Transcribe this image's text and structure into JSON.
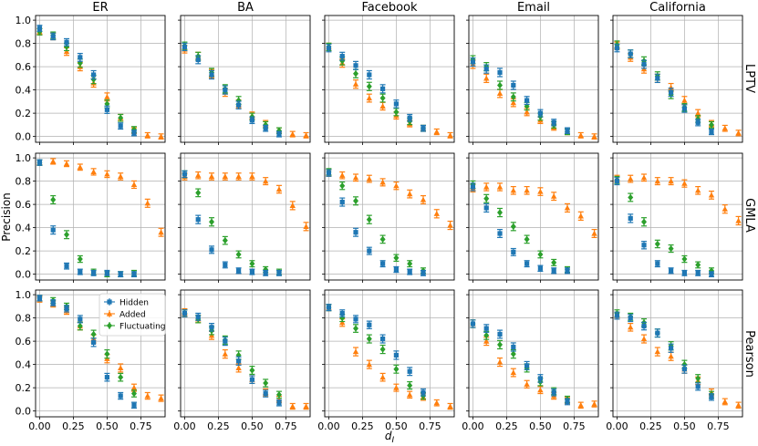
{
  "figure": {
    "columns": [
      "ER",
      "BA",
      "Facebook",
      "Email",
      "California"
    ],
    "rows": [
      "LPTV",
      "GMLA",
      "Pearson"
    ],
    "ylabel": "Precision",
    "xlabel": "d_J",
    "legend": {
      "hidden": "Hidden",
      "added": "Added",
      "fluctuating": "Fluctuating"
    }
  },
  "colors": {
    "hidden": "#1f77b4",
    "added": "#ff7f0e",
    "fluctuating": "#2ca02c",
    "grid": "#b0b0b0"
  },
  "chart_data": {
    "type": "scatter",
    "subtype": "errorbar-grid",
    "x_ticks": [
      "0.00",
      "0.25",
      "0.50",
      "0.75"
    ],
    "y_ticks": [
      "0.0",
      "0.2",
      "0.4",
      "0.6",
      "0.8",
      "1.0"
    ],
    "xlim": [
      -0.03,
      0.93
    ],
    "ylim": [
      -0.05,
      1.04
    ],
    "grid": true,
    "legend_location": "upper-right of Pearson/ER panel",
    "x_hidden": [
      0.0,
      0.1,
      0.2,
      0.3,
      0.4,
      0.5,
      0.6,
      0.7
    ],
    "x_added": [
      0.0,
      0.1,
      0.2,
      0.3,
      0.4,
      0.5,
      0.6,
      0.7,
      0.8,
      0.9
    ],
    "x_fluct": [
      0.0,
      0.1,
      0.2,
      0.3,
      0.4,
      0.5,
      0.6,
      0.7
    ],
    "panels": [
      {
        "row": "LPTV",
        "column": "ER",
        "hidden": [
          0.93,
          0.86,
          0.81,
          0.68,
          0.53,
          0.23,
          0.09,
          0.03
        ],
        "added": [
          0.9,
          0.86,
          0.73,
          0.6,
          0.46,
          0.34,
          0.16,
          0.05,
          0.01,
          0.0
        ],
        "fluctuating": [
          0.9,
          0.87,
          0.77,
          0.63,
          0.49,
          0.28,
          0.16,
          0.06
        ]
      },
      {
        "row": "LPTV",
        "column": "BA",
        "hidden": [
          0.77,
          0.66,
          0.53,
          0.4,
          0.27,
          0.14,
          0.07,
          0.02
        ],
        "added": [
          0.75,
          0.69,
          0.54,
          0.38,
          0.28,
          0.18,
          0.11,
          0.05,
          0.02,
          0.01
        ],
        "fluctuating": [
          0.78,
          0.69,
          0.55,
          0.41,
          0.31,
          0.17,
          0.1,
          0.05
        ]
      },
      {
        "row": "LPTV",
        "column": "Facebook",
        "hidden": [
          0.76,
          0.69,
          0.61,
          0.53,
          0.41,
          0.28,
          0.16,
          0.07
        ],
        "added": [
          0.77,
          0.63,
          0.45,
          0.33,
          0.26,
          0.18,
          0.11,
          0.07,
          0.04,
          0.01
        ],
        "fluctuating": [
          0.77,
          0.65,
          0.54,
          0.43,
          0.33,
          0.21,
          0.13,
          0.07
        ]
      },
      {
        "row": "LPTV",
        "column": "Email",
        "hidden": [
          0.64,
          0.58,
          0.55,
          0.44,
          0.31,
          0.2,
          0.12,
          0.05
        ],
        "added": [
          0.62,
          0.5,
          0.37,
          0.29,
          0.21,
          0.14,
          0.08,
          0.04,
          0.01,
          0.0
        ],
        "fluctuating": [
          0.66,
          0.6,
          0.44,
          0.34,
          0.26,
          0.17,
          0.1,
          0.04
        ]
      },
      {
        "row": "LPTV",
        "column": "California",
        "hidden": [
          0.76,
          0.71,
          0.62,
          0.5,
          0.38,
          0.24,
          0.12,
          0.04
        ],
        "added": [
          0.78,
          0.68,
          0.58,
          0.5,
          0.42,
          0.31,
          0.2,
          0.11,
          0.07,
          0.03
        ],
        "fluctuating": [
          0.79,
          0.71,
          0.65,
          0.52,
          0.36,
          0.25,
          0.15,
          0.1
        ]
      },
      {
        "row": "GMLA",
        "column": "ER",
        "hidden": [
          0.96,
          0.38,
          0.07,
          0.02,
          0.01,
          0.01,
          0.0,
          0.0
        ],
        "added": [
          0.96,
          0.97,
          0.95,
          0.92,
          0.88,
          0.86,
          0.84,
          0.77,
          0.61,
          0.36
        ],
        "fluctuating": [
          0.96,
          0.64,
          0.34,
          0.13,
          0.02,
          0.0,
          0.0,
          0.01
        ]
      },
      {
        "row": "GMLA",
        "column": "BA",
        "hidden": [
          0.86,
          0.47,
          0.21,
          0.08,
          0.03,
          0.02,
          0.01,
          0.01
        ],
        "added": [
          0.84,
          0.85,
          0.84,
          0.84,
          0.84,
          0.84,
          0.8,
          0.73,
          0.59,
          0.41
        ],
        "fluctuating": [
          0.86,
          0.7,
          0.45,
          0.29,
          0.17,
          0.09,
          0.04,
          0.02
        ]
      },
      {
        "row": "GMLA",
        "column": "Facebook",
        "hidden": [
          0.87,
          0.62,
          0.36,
          0.2,
          0.09,
          0.04,
          0.02,
          0.01
        ],
        "added": [
          0.87,
          0.85,
          0.83,
          0.82,
          0.79,
          0.76,
          0.69,
          0.64,
          0.52,
          0.42
        ],
        "fluctuating": [
          0.88,
          0.76,
          0.63,
          0.47,
          0.3,
          0.14,
          0.09,
          0.03
        ]
      },
      {
        "row": "GMLA",
        "column": "Email",
        "hidden": [
          0.75,
          0.57,
          0.35,
          0.19,
          0.09,
          0.05,
          0.03,
          0.03
        ],
        "added": [
          0.74,
          0.75,
          0.75,
          0.72,
          0.72,
          0.71,
          0.67,
          0.57,
          0.5,
          0.35
        ],
        "fluctuating": [
          0.77,
          0.65,
          0.53,
          0.41,
          0.3,
          0.17,
          0.1,
          0.04
        ]
      },
      {
        "row": "GMLA",
        "column": "California",
        "hidden": [
          0.8,
          0.48,
          0.25,
          0.09,
          0.03,
          0.01,
          0.01,
          0.0
        ],
        "added": [
          0.82,
          0.82,
          0.83,
          0.8,
          0.8,
          0.78,
          0.72,
          0.68,
          0.56,
          0.46
        ],
        "fluctuating": [
          0.81,
          0.66,
          0.45,
          0.26,
          0.22,
          0.13,
          0.08,
          0.03
        ]
      },
      {
        "row": "Pearson",
        "column": "ER",
        "hidden": [
          0.97,
          0.93,
          0.88,
          0.79,
          0.59,
          0.29,
          0.13,
          0.05
        ],
        "added": [
          0.96,
          0.92,
          0.86,
          0.73,
          0.62,
          0.45,
          0.37,
          0.2,
          0.13,
          0.11
        ],
        "fluctuating": [
          0.97,
          0.95,
          0.9,
          0.73,
          0.66,
          0.49,
          0.29,
          0.15
        ]
      },
      {
        "row": "Pearson",
        "column": "BA",
        "hidden": [
          0.84,
          0.81,
          0.72,
          0.6,
          0.43,
          0.27,
          0.15,
          0.07
        ],
        "added": [
          0.85,
          0.79,
          0.65,
          0.49,
          0.37,
          0.27,
          0.16,
          0.1,
          0.04,
          0.04
        ],
        "fluctuating": [
          0.84,
          0.79,
          0.69,
          0.61,
          0.48,
          0.35,
          0.24,
          0.14
        ]
      },
      {
        "row": "Pearson",
        "column": "Facebook",
        "hidden": [
          0.89,
          0.84,
          0.79,
          0.74,
          0.62,
          0.48,
          0.34,
          0.16
        ],
        "added": [
          0.89,
          0.76,
          0.51,
          0.4,
          0.29,
          0.2,
          0.14,
          0.12,
          0.07,
          0.04
        ],
        "fluctuating": [
          0.89,
          0.8,
          0.71,
          0.62,
          0.53,
          0.36,
          0.22,
          0.13
        ]
      },
      {
        "row": "Pearson",
        "column": "Email",
        "hidden": [
          0.75,
          0.71,
          0.66,
          0.55,
          0.39,
          0.28,
          0.16,
          0.08
        ],
        "added": [
          0.75,
          0.6,
          0.42,
          0.33,
          0.23,
          0.18,
          0.13,
          0.09,
          0.05,
          0.06
        ],
        "fluctuating": [
          0.75,
          0.65,
          0.57,
          0.49,
          0.37,
          0.25,
          0.17,
          0.1
        ]
      },
      {
        "row": "Pearson",
        "column": "California",
        "hidden": [
          0.82,
          0.8,
          0.73,
          0.67,
          0.54,
          0.36,
          0.21,
          0.12
        ],
        "added": [
          0.82,
          0.72,
          0.62,
          0.51,
          0.47,
          0.36,
          0.26,
          0.16,
          0.08,
          0.05
        ],
        "fluctuating": [
          0.84,
          0.81,
          0.76,
          0.67,
          0.56,
          0.4,
          0.28,
          0.14
        ]
      }
    ]
  }
}
